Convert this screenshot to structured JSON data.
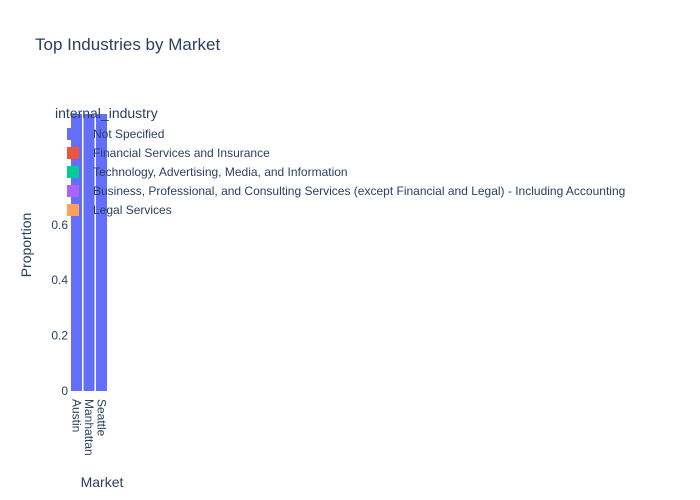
{
  "chart_data": {
    "type": "bar",
    "barmode": "stack",
    "title": "Top Industries by Market",
    "xlabel": "Market",
    "ylabel": "Proportion",
    "categories": [
      "Austin",
      "Manhattan",
      "Seattle"
    ],
    "legend_title": "internal_industry",
    "legend_placement": "top-left, overlapping plot",
    "y_ticks": [
      "0",
      "0.2",
      "0.4",
      "0.6"
    ],
    "ylim": [
      0,
      1
    ],
    "grid": false,
    "series": [
      {
        "name": "Not Specified",
        "color": "#636efa",
        "values": [
          1,
          1,
          1
        ]
      },
      {
        "name": "Financial Services and Insurance",
        "color": "#ef553b",
        "values": [
          0,
          0,
          0
        ]
      },
      {
        "name": "Technology, Advertising, Media, and Information",
        "color": "#00cc96",
        "values": [
          0,
          0,
          0
        ]
      },
      {
        "name": "Business, Professional, and Consulting Services (except Financial and Legal) - Including Accounting",
        "color": "#ab63fa",
        "values": [
          0,
          0,
          0
        ]
      },
      {
        "name": "Legal Services",
        "color": "#ffa15a",
        "values": [
          0,
          0,
          0
        ]
      }
    ]
  }
}
